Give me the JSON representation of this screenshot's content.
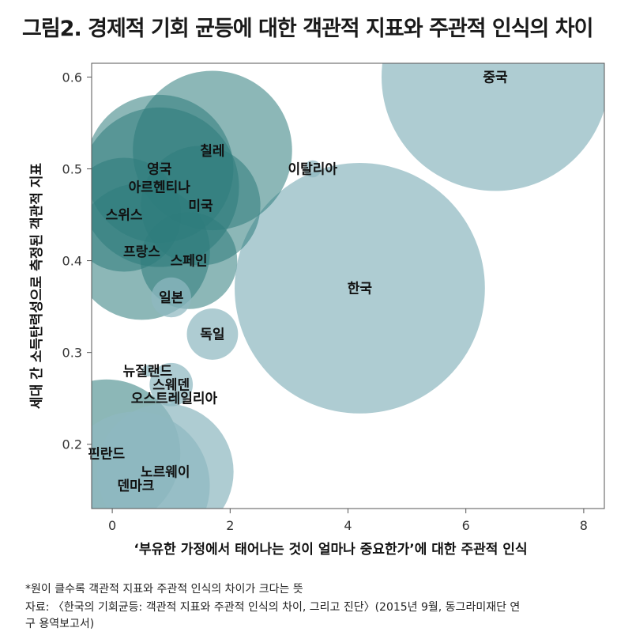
{
  "title": "그림2. 경제적 기회 균등에 대한 객관적 지표와 주관적 인식의 차이",
  "notes": {
    "footnote": "*원이 클수록 객관적 지표와 주관적 인식의 차이가 크다는 뜻",
    "source_line1": "자료: 〈한국의 기회균등: 객관적 지표와 주관적 인식의 차이, 그리고 진단〉(2015년 9월, 동그라미재단 연",
    "source_line2": "구 용역보고서)"
  },
  "colors": {
    "bubble_light": "#8fb9c0",
    "bubble_dark": "#2e7b7c",
    "frame": "#555555"
  },
  "chart_data": {
    "type": "scatter",
    "subtype": "bubble",
    "xlabel": "‘부유한 가정에서 태어나는 것이 얼마나 중요한가’에 대한 주관적 인식",
    "ylabel": "세대 간 소득탄력성으로 측정된 객관적 지표",
    "xlim": [
      -0.35,
      8.35
    ],
    "ylim": [
      0.13,
      0.615
    ],
    "xticks": [
      0,
      2,
      4,
      6,
      8
    ],
    "xtick_labels": [
      "0",
      "2",
      "4",
      "6",
      "8"
    ],
    "yticks": [
      0.2,
      0.3,
      0.4,
      0.5,
      0.6
    ],
    "ytick_labels": [
      "0.2",
      "0.3",
      "0.4",
      "0.5",
      "0.6"
    ],
    "grid": false,
    "size_note": "circle size = gap between objective indicator and subjective perception",
    "points": [
      {
        "label": "중국",
        "x": 6.5,
        "y": 0.6,
        "size": 2.0,
        "tone": "light"
      },
      {
        "label": "한국",
        "x": 4.2,
        "y": 0.37,
        "size": 2.2,
        "tone": "light"
      },
      {
        "label": "이탈리아",
        "x": 3.4,
        "y": 0.5,
        "size": 0.15,
        "tone": "light"
      },
      {
        "label": "칠레",
        "x": 1.7,
        "y": 0.52,
        "size": 1.4,
        "tone": "dark"
      },
      {
        "label": "영국",
        "x": 0.8,
        "y": 0.5,
        "size": 1.3,
        "tone": "dark"
      },
      {
        "label": "아르헨티나",
        "x": 0.8,
        "y": 0.48,
        "size": 1.4,
        "tone": "dark"
      },
      {
        "label": "미국",
        "x": 1.5,
        "y": 0.46,
        "size": 1.05,
        "tone": "dark"
      },
      {
        "label": "스위스",
        "x": 0.2,
        "y": 0.45,
        "size": 1.0,
        "tone": "dark"
      },
      {
        "label": "프랑스",
        "x": 0.5,
        "y": 0.41,
        "size": 1.2,
        "tone": "dark"
      },
      {
        "label": "스페인",
        "x": 1.3,
        "y": 0.4,
        "size": 0.85,
        "tone": "dark"
      },
      {
        "label": "일본",
        "x": 1.0,
        "y": 0.36,
        "size": 0.35,
        "tone": "light"
      },
      {
        "label": "독일",
        "x": 1.7,
        "y": 0.32,
        "size": 0.45,
        "tone": "light"
      },
      {
        "label": "뉴질랜드",
        "x": 0.6,
        "y": 0.28,
        "size": 0.1,
        "tone": "light"
      },
      {
        "label": "스웨덴",
        "x": 1.0,
        "y": 0.265,
        "size": 0.38,
        "tone": "light"
      },
      {
        "label": "오스트레일리아",
        "x": 1.05,
        "y": 0.25,
        "size": 0.1,
        "tone": "light"
      },
      {
        "label": "핀란드",
        "x": -0.1,
        "y": 0.19,
        "size": 1.3,
        "tone": "dark"
      },
      {
        "label": "노르웨이",
        "x": 0.9,
        "y": 0.17,
        "size": 1.2,
        "tone": "light"
      },
      {
        "label": "덴마크",
        "x": 0.4,
        "y": 0.155,
        "size": 1.3,
        "tone": "light"
      }
    ]
  }
}
